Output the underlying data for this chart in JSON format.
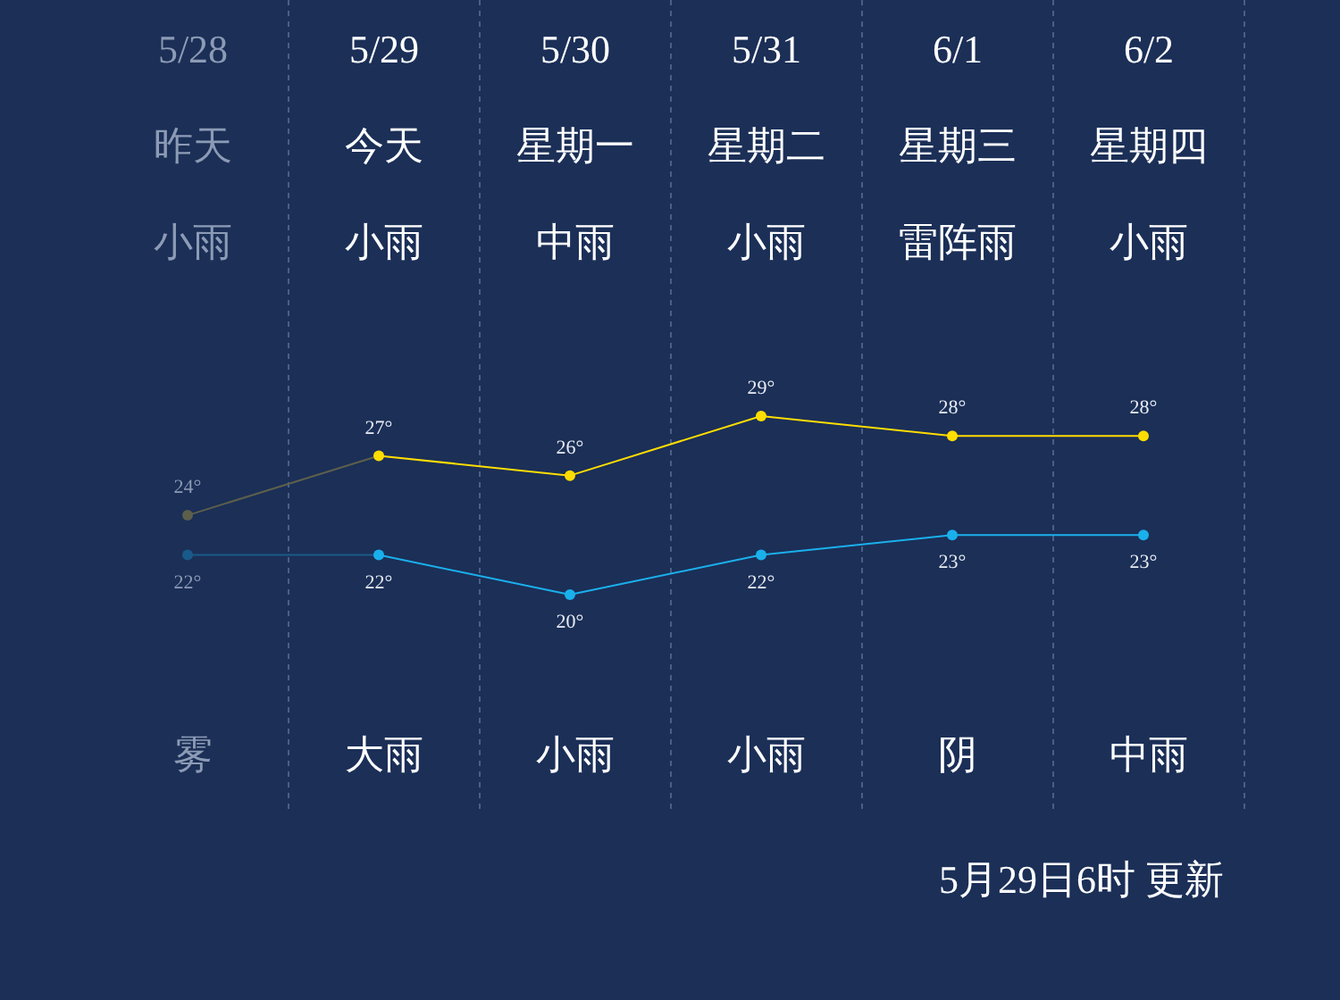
{
  "chart_data": {
    "type": "line",
    "categories": [
      "5/28",
      "5/29",
      "5/30",
      "5/31",
      "6/1",
      "6/2"
    ],
    "annotations": [
      "昨天",
      "今天",
      "星期一",
      "星期二",
      "星期三",
      "星期四",
      "小雨",
      "小雨",
      "中雨",
      "小雨",
      "雷阵雨",
      "小雨",
      "雾",
      "大雨",
      "小雨",
      "小雨",
      "阴",
      "中雨",
      "5月29日6时 更新"
    ],
    "series": [
      {
        "color": "#ffdd00",
        "colors": [
          "#5c5f4a",
          "#ffdd00",
          "#ffdd00",
          "#ffdd00",
          "#ffdd00",
          "#ffdd00"
        ],
        "values": [
          24,
          27,
          26,
          29,
          28,
          28
        ],
        "value_labels": [
          "24°",
          "27°",
          "26°",
          "29°",
          "28°",
          "28°"
        ]
      },
      {
        "color": "#1ab0ec",
        "colors": [
          "#1a5a8a",
          "#1ab0ec",
          "#1ab0ec",
          "#1ab0ec",
          "#1ab0ec",
          "#1ab0ec"
        ],
        "values": [
          22,
          22,
          20,
          22,
          23,
          23
        ],
        "value_labels": [
          "22°",
          "22°",
          "20°",
          "22°",
          "23°",
          "23°"
        ]
      }
    ],
    "grid": "x",
    "marker": "circle",
    "line_style": "solid"
  }
}
